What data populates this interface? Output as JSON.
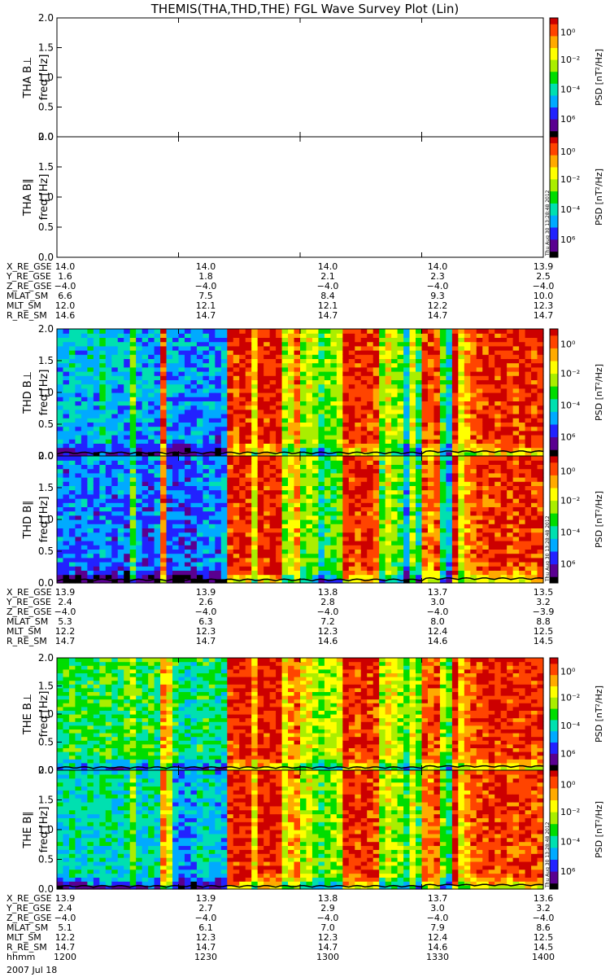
{
  "title": "THEMIS(THA,THD,THE) FGL Wave Survey Plot (Lin)",
  "timestamp": "Thu Aug 30 13:28:48 2012",
  "date": "2007 Jul 18",
  "colors": {
    "colorbar": [
      "#000000",
      "#5a0090",
      "#2222ff",
      "#00aaff",
      "#00e0b0",
      "#00dd00",
      "#aaee00",
      "#ffff00",
      "#ffaa00",
      "#ff4400",
      "#cc0000"
    ]
  },
  "colorbar": {
    "label": "PSD [nT²/Hz]",
    "ticks": [
      "10⁶",
      "10⁻⁴",
      "10⁻²",
      "10⁰"
    ]
  },
  "chart_data": [
    {
      "type": "heatmap",
      "name": "THA B⊥",
      "ylabel_top": "THA B⊥",
      "ylabel": "freq [Hz]",
      "ylim": [
        0,
        2.0
      ],
      "yticks": [
        "0.0",
        "0.5",
        "1.0",
        "1.5",
        "2.0"
      ],
      "has_data": false
    },
    {
      "type": "heatmap",
      "name": "THA B∥",
      "ylabel_top": "THA B∥",
      "ylabel": "freq [Hz]",
      "ylim": [
        0,
        2.0
      ],
      "yticks": [
        "0.0",
        "0.5",
        "1.0",
        "1.5",
        "2.0"
      ],
      "has_data": false
    },
    {
      "type": "heatmap",
      "name": "THD B⊥",
      "ylabel_top": "THD B⊥",
      "ylabel": "freq [Hz]",
      "ylim": [
        0,
        2.0
      ],
      "yticks": [
        "0.0",
        "0.5",
        "1.0",
        "1.5",
        "2.0"
      ],
      "has_data": true,
      "columns": [
        0.3,
        0.3,
        0.35,
        0.3,
        0.3,
        0.35,
        0.3,
        0.4,
        0.35,
        0.3,
        0.3,
        0.3,
        0.55,
        0.3,
        0.3,
        0.3,
        0.3,
        0.9,
        0.3,
        0.25,
        0.25,
        0.25,
        0.25,
        0.3,
        0.3,
        0.3,
        0.25,
        0.3,
        0.92,
        0.9,
        0.95,
        0.92,
        0.7,
        0.95,
        0.92,
        0.95,
        0.95,
        0.6,
        0.7,
        0.85,
        0.55,
        0.65,
        0.6,
        0.45,
        0.55,
        0.55,
        0.6,
        0.95,
        0.92,
        0.9,
        0.95,
        0.92,
        0.9,
        0.55,
        0.7,
        0.6,
        0.55,
        0.35,
        0.65,
        0.45,
        0.9,
        0.85,
        0.9,
        0.5,
        0.35,
        0.95,
        0.7,
        0.8,
        0.85,
        0.9,
        0.9,
        0.95,
        0.9,
        0.95,
        0.92,
        0.9,
        0.92,
        0.95,
        0.9,
        0.92
      ]
    },
    {
      "type": "heatmap",
      "name": "THD B∥",
      "ylabel_top": "THD B∥",
      "ylabel": "freq [Hz]",
      "ylim": [
        0,
        2.0
      ],
      "yticks": [
        "0.0",
        "0.5",
        "1.0",
        "1.5",
        "2.0"
      ],
      "has_data": true,
      "columns": [
        0.25,
        0.22,
        0.25,
        0.22,
        0.25,
        0.25,
        0.22,
        0.28,
        0.25,
        0.22,
        0.25,
        0.22,
        0.5,
        0.25,
        0.22,
        0.22,
        0.25,
        0.85,
        0.22,
        0.2,
        0.22,
        0.2,
        0.22,
        0.25,
        0.25,
        0.3,
        0.25,
        0.3,
        0.92,
        0.92,
        0.95,
        0.92,
        0.65,
        0.95,
        0.92,
        0.95,
        0.95,
        0.55,
        0.65,
        0.8,
        0.5,
        0.6,
        0.55,
        0.4,
        0.5,
        0.5,
        0.55,
        0.95,
        0.92,
        0.9,
        0.95,
        0.92,
        0.85,
        0.5,
        0.65,
        0.55,
        0.5,
        0.3,
        0.6,
        0.4,
        0.85,
        0.8,
        0.88,
        0.45,
        0.3,
        0.95,
        0.65,
        0.8,
        0.85,
        0.9,
        0.88,
        0.92,
        0.9,
        0.95,
        0.9,
        0.88,
        0.92,
        0.95,
        0.9,
        0.92
      ]
    },
    {
      "type": "heatmap",
      "name": "THE B⊥",
      "ylabel_top": "THE B⊥",
      "ylabel": "freq [Hz]",
      "ylim": [
        0,
        2.0
      ],
      "yticks": [
        "0.0",
        "0.5",
        "1.0",
        "1.5",
        "2.0"
      ],
      "has_data": true,
      "columns": [
        0.45,
        0.45,
        0.5,
        0.45,
        0.45,
        0.5,
        0.45,
        0.5,
        0.5,
        0.45,
        0.45,
        0.5,
        0.6,
        0.45,
        0.45,
        0.5,
        0.45,
        0.8,
        0.7,
        0.45,
        0.4,
        0.4,
        0.4,
        0.45,
        0.45,
        0.45,
        0.4,
        0.4,
        0.92,
        0.95,
        0.95,
        0.92,
        0.75,
        0.95,
        0.92,
        0.95,
        0.95,
        0.7,
        0.8,
        0.85,
        0.65,
        0.7,
        0.6,
        0.55,
        0.6,
        0.6,
        0.65,
        0.95,
        0.92,
        0.9,
        0.95,
        0.92,
        0.9,
        0.6,
        0.7,
        0.65,
        0.6,
        0.5,
        0.7,
        0.55,
        0.9,
        0.85,
        0.9,
        0.6,
        0.5,
        0.95,
        0.75,
        0.85,
        0.88,
        0.9,
        0.92,
        0.95,
        0.92,
        0.95,
        0.92,
        0.9,
        0.92,
        0.95,
        0.9,
        0.92
      ]
    },
    {
      "type": "heatmap",
      "name": "THE B∥",
      "ylabel_top": "THE B∥",
      "ylabel": "freq [Hz]",
      "ylim": [
        0,
        2.0
      ],
      "yticks": [
        "0.0",
        "0.5",
        "1.0",
        "1.5",
        "2.0"
      ],
      "has_data": true,
      "columns": [
        0.35,
        0.35,
        0.4,
        0.35,
        0.35,
        0.4,
        0.35,
        0.4,
        0.4,
        0.35,
        0.35,
        0.4,
        0.55,
        0.35,
        0.35,
        0.4,
        0.35,
        0.8,
        0.65,
        0.3,
        0.28,
        0.28,
        0.3,
        0.35,
        0.35,
        0.35,
        0.3,
        0.3,
        0.92,
        0.95,
        0.95,
        0.92,
        0.7,
        0.95,
        0.92,
        0.95,
        0.95,
        0.65,
        0.75,
        0.82,
        0.6,
        0.65,
        0.55,
        0.5,
        0.55,
        0.55,
        0.6,
        0.95,
        0.92,
        0.9,
        0.95,
        0.92,
        0.88,
        0.55,
        0.65,
        0.6,
        0.55,
        0.45,
        0.65,
        0.5,
        0.85,
        0.82,
        0.88,
        0.55,
        0.45,
        0.95,
        0.7,
        0.8,
        0.85,
        0.88,
        0.9,
        0.92,
        0.9,
        0.95,
        0.9,
        0.88,
        0.9,
        0.92,
        0.88,
        0.9
      ]
    }
  ],
  "ephemeris": [
    {
      "rows": [
        {
          "label": "X_RE_GSE",
          "values": [
            "14.0",
            "14.0",
            "14.0",
            "14.0",
            "13.9"
          ]
        },
        {
          "label": "Y_RE_GSE",
          "values": [
            "1.6",
            "1.8",
            "2.1",
            "2.3",
            "2.5"
          ]
        },
        {
          "label": "Z_RE_GSE",
          "values": [
            "−4.0",
            "−4.0",
            "−4.0",
            "−4.0",
            "−4.0"
          ]
        },
        {
          "label": "MLAT_SM",
          "values": [
            "6.6",
            "7.5",
            "8.4",
            "9.3",
            "10.0"
          ]
        },
        {
          "label": "MLT_SM",
          "values": [
            "12.0",
            "12.1",
            "12.1",
            "12.2",
            "12.3"
          ]
        },
        {
          "label": "R_RE_SM",
          "values": [
            "14.6",
            "14.7",
            "14.7",
            "14.7",
            "14.7"
          ]
        }
      ]
    },
    {
      "rows": [
        {
          "label": "X_RE_GSE",
          "values": [
            "13.9",
            "13.9",
            "13.8",
            "13.7",
            "13.5"
          ]
        },
        {
          "label": "Y_RE_GSE",
          "values": [
            "2.4",
            "2.6",
            "2.8",
            "3.0",
            "3.2"
          ]
        },
        {
          "label": "Z_RE_GSE",
          "values": [
            "−4.0",
            "−4.0",
            "−4.0",
            "−4.0",
            "−3.9"
          ]
        },
        {
          "label": "MLAT_SM",
          "values": [
            "5.3",
            "6.3",
            "7.2",
            "8.0",
            "8.8"
          ]
        },
        {
          "label": "MLT_SM",
          "values": [
            "12.2",
            "12.3",
            "12.3",
            "12.4",
            "12.5"
          ]
        },
        {
          "label": "R_RE_SM",
          "values": [
            "14.7",
            "14.7",
            "14.6",
            "14.6",
            "14.5"
          ]
        }
      ]
    },
    {
      "rows": [
        {
          "label": "X_RE_GSE",
          "values": [
            "13.9",
            "13.9",
            "13.8",
            "13.7",
            "13.6"
          ]
        },
        {
          "label": "Y_RE_GSE",
          "values": [
            "2.4",
            "2.7",
            "2.9",
            "3.0",
            "3.2"
          ]
        },
        {
          "label": "Z_RE_GSE",
          "values": [
            "−4.0",
            "−4.0",
            "−4.0",
            "−4.0",
            "−4.0"
          ]
        },
        {
          "label": "MLAT_SM",
          "values": [
            "5.1",
            "6.1",
            "7.0",
            "7.9",
            "8.6"
          ]
        },
        {
          "label": "MLT_SM",
          "values": [
            "12.2",
            "12.3",
            "12.3",
            "12.4",
            "12.5"
          ]
        },
        {
          "label": "R_RE_SM",
          "values": [
            "14.7",
            "14.7",
            "14.7",
            "14.6",
            "14.5"
          ]
        },
        {
          "label": "hhmm",
          "values": [
            "1200",
            "1230",
            "1300",
            "1330",
            "1400"
          ]
        }
      ]
    }
  ]
}
